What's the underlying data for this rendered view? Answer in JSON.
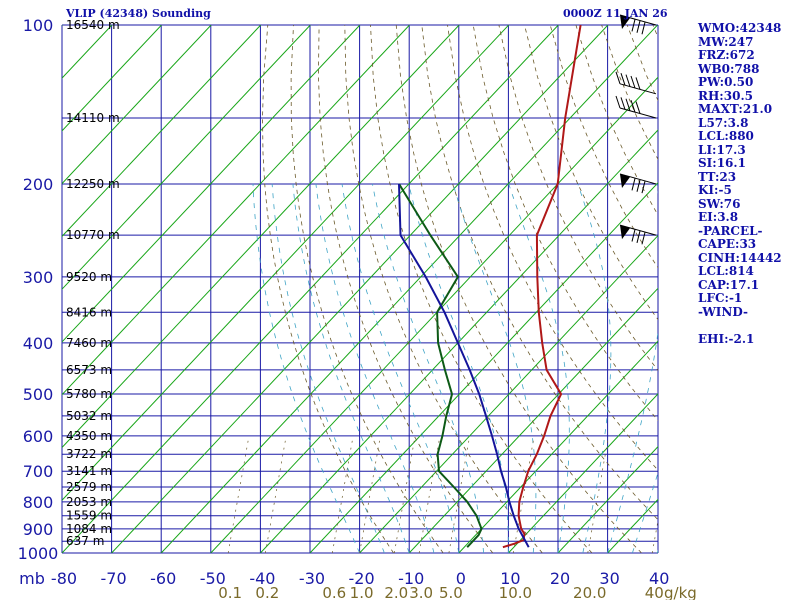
{
  "header": {
    "title": "VLIP (42348) Sounding",
    "time": "0000Z 11 JAN 26"
  },
  "stats": [
    "WMO:42348",
    "MW:247",
    "FRZ:672",
    "WB0:788",
    "PW:0.50",
    "RH:30.5",
    "MAXT:21.0",
    "L57:3.8",
    "LCL:880",
    "LI:17.3",
    "SI:16.1",
    "TT:23",
    "KI:-5",
    "SW:76",
    "EI:3.8",
    "-PARCEL-",
    "CAPE:33",
    "CINH:14442",
    "LCL:814",
    "CAP:17.1",
    "LFC:-1",
    "-WIND-",
    "",
    "EHI:-2.1"
  ],
  "chart_data": {
    "type": "line",
    "title": "VLIP (42348) Sounding",
    "subtitle": "0000Z 11 JAN 26",
    "xlabel": "",
    "ylabel": "mb",
    "y_scale": "log",
    "xlim": [
      -80,
      50
    ],
    "ylim": [
      1000,
      100
    ],
    "pressure_ticks": [
      100,
      200,
      300,
      400,
      500,
      600,
      700,
      800,
      900,
      1000
    ],
    "temp_ticks": [
      -80,
      -70,
      -60,
      -50,
      -40,
      -30,
      -20,
      -10,
      0,
      10,
      20,
      30,
      40
    ],
    "temp_tick_labels": [
      "-80",
      "-70",
      "-60",
      "-50",
      "-40",
      "-30",
      "-20",
      "-10",
      "0",
      "10",
      "20",
      "30",
      "40"
    ],
    "mixing_ratio_labels": [
      {
        "label": "0.1",
        "x": -46.5
      },
      {
        "label": "0.2",
        "x": -39
      },
      {
        "label": "0.6",
        "x": -25.5
      },
      {
        "label": "1.0",
        "x": -20
      },
      {
        "label": "2.0",
        "x": -13
      },
      {
        "label": "3.0",
        "x": -8
      },
      {
        "label": "5.0",
        "x": -2
      },
      {
        "label": "10.0",
        "x": 11
      },
      {
        "label": "20.0",
        "x": 26
      },
      {
        "label": "40",
        "x": 39
      }
    ],
    "mixing_ratio_unit": "g/kg",
    "height_labels": [
      {
        "p": 100,
        "label": "16540 m"
      },
      {
        "p": 150,
        "label": "14110 m"
      },
      {
        "p": 200,
        "label": "12250 m"
      },
      {
        "p": 250,
        "label": "10770 m"
      },
      {
        "p": 300,
        "label": "9520 m"
      },
      {
        "p": 350,
        "label": "8416 m"
      },
      {
        "p": 400,
        "label": "7460 m"
      },
      {
        "p": 450,
        "label": "6573 m"
      },
      {
        "p": 500,
        "label": "5780 m"
      },
      {
        "p": 550,
        "label": "5032 m"
      },
      {
        "p": 600,
        "label": "4350 m"
      },
      {
        "p": 650,
        "label": "3722 m"
      },
      {
        "p": 700,
        "label": "3141 m"
      },
      {
        "p": 750,
        "label": "2579 m"
      },
      {
        "p": 800,
        "label": "2053 m"
      },
      {
        "p": 850,
        "label": "1559 m"
      },
      {
        "p": 900,
        "label": "1084 m"
      },
      {
        "p": 950,
        "label": "637 m"
      }
    ],
    "series": [
      {
        "role": "temperature",
        "color": "#b01818",
        "points": [
          {
            "p": 100,
            "t": -75.5
          },
          {
            "p": 150,
            "t": -61
          },
          {
            "p": 200,
            "t": -50
          },
          {
            "p": 250,
            "t": -44.5
          },
          {
            "p": 300,
            "t": -36.5
          },
          {
            "p": 350,
            "t": -29.5
          },
          {
            "p": 400,
            "t": -23
          },
          {
            "p": 450,
            "t": -17
          },
          {
            "p": 500,
            "t": -9.5
          },
          {
            "p": 550,
            "t": -7.5
          },
          {
            "p": 600,
            "t": -5
          },
          {
            "p": 650,
            "t": -3
          },
          {
            "p": 700,
            "t": -1.5
          },
          {
            "p": 750,
            "t": 0.5
          },
          {
            "p": 800,
            "t": 2.5
          },
          {
            "p": 850,
            "t": 5
          },
          {
            "p": 900,
            "t": 8
          },
          {
            "p": 920,
            "t": 9.6
          },
          {
            "p": 945,
            "t": 10.6
          },
          {
            "p": 960,
            "t": 9.5
          },
          {
            "p": 975,
            "t": 7.8
          }
        ]
      },
      {
        "role": "dewpoint",
        "color": "#0d5a16",
        "points": [
          {
            "p": 200,
            "t": -82
          },
          {
            "p": 250,
            "t": -66
          },
          {
            "p": 300,
            "t": -52.5
          },
          {
            "p": 350,
            "t": -50
          },
          {
            "p": 400,
            "t": -44
          },
          {
            "p": 450,
            "t": -37.5
          },
          {
            "p": 500,
            "t": -31.5
          },
          {
            "p": 550,
            "t": -28.5
          },
          {
            "p": 600,
            "t": -25.5
          },
          {
            "p": 650,
            "t": -23
          },
          {
            "p": 700,
            "t": -19.5
          },
          {
            "p": 750,
            "t": -13.5
          },
          {
            "p": 800,
            "t": -8
          },
          {
            "p": 850,
            "t": -3.5
          },
          {
            "p": 900,
            "t": 0
          },
          {
            "p": 925,
            "t": 0.6
          },
          {
            "p": 975,
            "t": 0.6
          }
        ]
      },
      {
        "role": "parcel",
        "color": "#14149a",
        "points": [
          {
            "p": 200,
            "t": -82
          },
          {
            "p": 250,
            "t": -72
          },
          {
            "p": 300,
            "t": -59
          },
          {
            "p": 350,
            "t": -48.5
          },
          {
            "p": 400,
            "t": -40
          },
          {
            "p": 450,
            "t": -32.5
          },
          {
            "p": 500,
            "t": -26
          },
          {
            "p": 550,
            "t": -20.5
          },
          {
            "p": 600,
            "t": -15.5
          },
          {
            "p": 650,
            "t": -11
          },
          {
            "p": 700,
            "t": -7
          },
          {
            "p": 750,
            "t": -3
          },
          {
            "p": 800,
            "t": 0.5
          },
          {
            "p": 850,
            "t": 4
          },
          {
            "p": 900,
            "t": 7.5
          },
          {
            "p": 940,
            "t": 10.5
          },
          {
            "p": 975,
            "t": 13
          }
        ]
      }
    ],
    "wind_barbs": [
      {
        "p": 100,
        "shape": "pennant"
      },
      {
        "p": 135,
        "shape": "barbs"
      },
      {
        "p": 150,
        "shape": "barbs"
      },
      {
        "p": 200,
        "shape": "pennant"
      },
      {
        "p": 250,
        "shape": "pennant"
      }
    ]
  }
}
